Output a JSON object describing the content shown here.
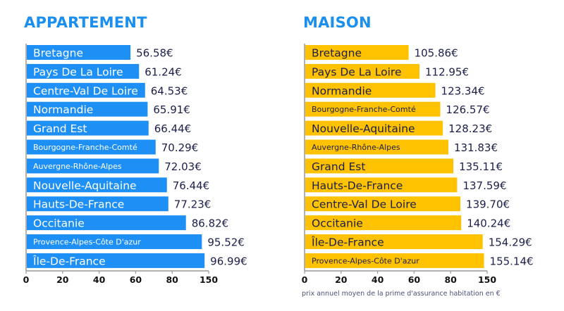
{
  "chart_data": [
    {
      "type": "bar",
      "orientation": "horizontal",
      "title": "APPARTEMENT",
      "color": "#1e90f5",
      "label_color": "#ffffff",
      "categories": [
        "Bretagne",
        "Pays De La Loire",
        "Centre-Val De Loire",
        "Normandie",
        "Grand Est",
        "Bourgogne-Franche-Comté",
        "Auvergne-Rhône-Alpes",
        "Nouvelle-Aquitaine",
        "Hauts-De-France",
        "Occitanie",
        "Provence-Alpes-Côte D'azur",
        "Île-De-France"
      ],
      "values": [
        56.58,
        61.24,
        64.53,
        65.91,
        66.44,
        70.29,
        72.03,
        76.44,
        77.23,
        86.82,
        95.52,
        96.99
      ],
      "value_labels": [
        "56.58€",
        "61.24€",
        "64.53€",
        "65.91€",
        "66.44€",
        "70.29€",
        "72.03€",
        "76.44€",
        "77.23€",
        "86.82€",
        "95.52€",
        "96.99€"
      ],
      "x_tick_labels": [
        "0",
        "20",
        "40",
        "60",
        "80",
        "150"
      ]
    },
    {
      "type": "bar",
      "orientation": "horizontal",
      "title": "MAISON",
      "color": "#ffc200",
      "label_color": "#1b1f4a",
      "categories": [
        "Bretagne",
        "Pays De La Loire",
        "Normandie",
        "Bourgogne-Franche-Comté",
        "Nouvelle-Aquitaine",
        "Auvergne-Rhône-Alpes",
        "Grand Est",
        "Hauts-De-France",
        "Centre-Val De Loire",
        "Occitanie",
        "Île-De-France",
        "Provence-Alpes-Côte D'azur"
      ],
      "values": [
        105.86,
        112.95,
        123.34,
        126.57,
        128.23,
        131.83,
        135.11,
        137.59,
        139.7,
        140.24,
        154.29,
        155.14
      ],
      "value_labels": [
        "105.86€",
        "112.95€",
        "123.34€",
        "126.57€",
        "128.23€",
        "131.83€",
        "135.11€",
        "137.59€",
        "139.70€",
        "140.24€",
        "154.29€",
        "155.14€"
      ],
      "x_tick_labels": [
        "0",
        "20",
        "40",
        "60",
        "80",
        "150"
      ]
    }
  ],
  "footnote": "prix annuel moyen de la prime d'assurance habitation en €"
}
